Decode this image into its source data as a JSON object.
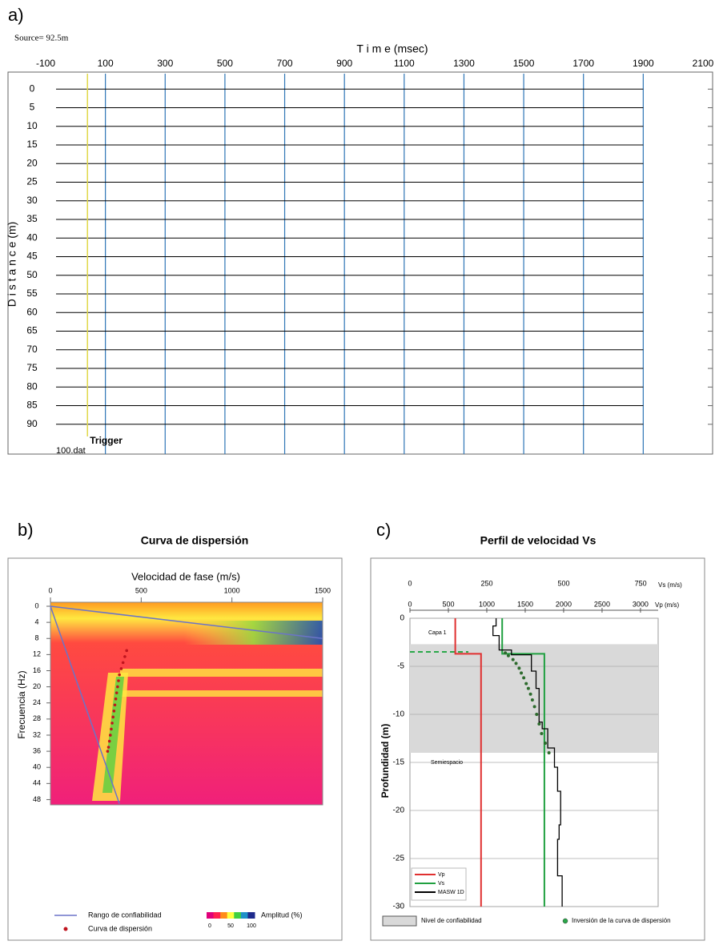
{
  "chart_data": [
    {
      "type": "seismogram",
      "panel_label": "a)",
      "source_label": "Source= 92.5m",
      "xlabel": "T i m e (msec)",
      "ylabel": "D i s t a n c e (m)",
      "xlim": [
        -100,
        2100
      ],
      "xticks": [
        -100,
        100,
        300,
        500,
        700,
        900,
        1100,
        1300,
        1500,
        1700,
        1900,
        2100
      ],
      "ylim": [
        -3.5,
        98
      ],
      "yticks": [
        0,
        5,
        10,
        15,
        20,
        25,
        30,
        35,
        40,
        45,
        50,
        55,
        60,
        65,
        70,
        75,
        80,
        85,
        90
      ],
      "grid": true,
      "grid_color": "#2e75b6",
      "trace_color": "#000000",
      "trigger_time": 40,
      "trigger_color": "#e0d84a",
      "trigger_label": "Trigger",
      "file_label": "100.dat"
    },
    {
      "type": "heatmap",
      "panel_label": "b)",
      "title": "Curva de dispersión",
      "xlabel": "Velocidad de fase (m/s)",
      "ylabel": "Frecuencia (Hz)",
      "xlim": [
        0,
        1500
      ],
      "xticks": [
        0,
        500,
        1000,
        1500
      ],
      "ylim": [
        0,
        49.5
      ],
      "yticks": [
        0,
        4,
        8,
        12,
        16,
        20,
        24,
        28,
        32,
        36,
        40,
        44,
        48
      ],
      "y_inverted": true,
      "series": [
        {
          "name": "Rango de confiabilidad",
          "color": "#6b74c8",
          "x": [
            0,
            1500,
            null,
            0,
            380
          ],
          "values": [
            0,
            8,
            null,
            0,
            49
          ]
        },
        {
          "name": "Curva de dispersión",
          "color": "#c0141e",
          "marker": "dot",
          "x": [
            420,
            410,
            400,
            390,
            380,
            375,
            370,
            365,
            360,
            355,
            350,
            345,
            340,
            335,
            330,
            325,
            320,
            315
          ],
          "values": [
            11,
            12.5,
            14,
            15.5,
            17,
            18.5,
            20,
            21.5,
            23,
            24.5,
            26,
            27.5,
            29,
            30.5,
            32,
            33.5,
            35,
            36
          ]
        }
      ],
      "colorbar": {
        "label": "Amplitud (%)",
        "ticks": [
          0,
          50,
          100
        ],
        "colors": [
          "#e0007a",
          "#ff2050",
          "#ff8c1a",
          "#ffff40",
          "#40d040",
          "#1e90c8",
          "#1e2a8c"
        ]
      }
    },
    {
      "type": "profile",
      "panel_label": "c)",
      "title": "Perfil de velocidad Vs",
      "xlabel": "Vs (m/s)",
      "x2label": "Vp (m/s)",
      "ylabel": "Profundidad (m)",
      "xlim": [
        0,
        807
      ],
      "xticks": [
        0,
        250,
        500,
        750
      ],
      "x2lim": [
        0,
        3230
      ],
      "x2ticks": [
        0,
        500,
        1000,
        1500,
        2000,
        2500,
        3000
      ],
      "ylim": [
        -30,
        0
      ],
      "yticks": [
        0,
        -5,
        -10,
        -15,
        -20,
        -25,
        -30
      ],
      "grid": true,
      "confidence_band": {
        "label": "Nivel de confiabilidad",
        "range": [
          -14,
          -2.7
        ],
        "color": "#d9d9d9"
      },
      "reference_depth": -3.5,
      "reference_color": "#2aa84a",
      "annotations": [
        "Capa 1",
        "Semiespacio"
      ],
      "series": [
        {
          "name": "Vp",
          "color": "#e03030",
          "axis": "x2",
          "x": [
            590,
            590,
            925,
            925
          ],
          "values": [
            0,
            -3.7,
            -3.7,
            -30
          ]
        },
        {
          "name": "Vs",
          "color": "#20a040",
          "x": [
            300,
            300,
            437,
            437
          ],
          "values": [
            0,
            -3.7,
            -3.7,
            -30
          ]
        },
        {
          "name": "MASW 1D",
          "color": "#000000",
          "x": [
            280,
            280,
            270,
            270,
            290,
            290,
            330,
            330,
            395,
            395,
            410,
            410,
            420,
            420,
            430,
            430,
            448,
            448,
            470,
            470,
            480,
            480,
            490,
            490,
            485,
            485,
            480,
            480,
            495,
            495
          ],
          "values": [
            0,
            -0.8,
            -0.8,
            -1.8,
            -1.8,
            -3.3,
            -3.3,
            -3.8,
            -3.8,
            -5.5,
            -5.5,
            -7.3,
            -7.3,
            -10.8,
            -10.8,
            -11.5,
            -11.5,
            -13.5,
            -13.5,
            -15.5,
            -15.5,
            -18,
            -18,
            -21.5,
            -21.5,
            -23,
            -23,
            -26.8,
            -26.8,
            -30
          ]
        },
        {
          "name": "Inversión de la curva de dispersión",
          "color": "#2d6b2d",
          "marker": "dot",
          "x": [
            310,
            320,
            335,
            345,
            355,
            362,
            370,
            378,
            385,
            392,
            398,
            405,
            412,
            420,
            428,
            440,
            452
          ],
          "values": [
            -3.6,
            -3.9,
            -4.3,
            -4.7,
            -5.2,
            -5.7,
            -6.2,
            -6.8,
            -7.3,
            -7.9,
            -8.5,
            -9.2,
            -10,
            -11,
            -12,
            -13,
            -14
          ]
        }
      ]
    }
  ]
}
